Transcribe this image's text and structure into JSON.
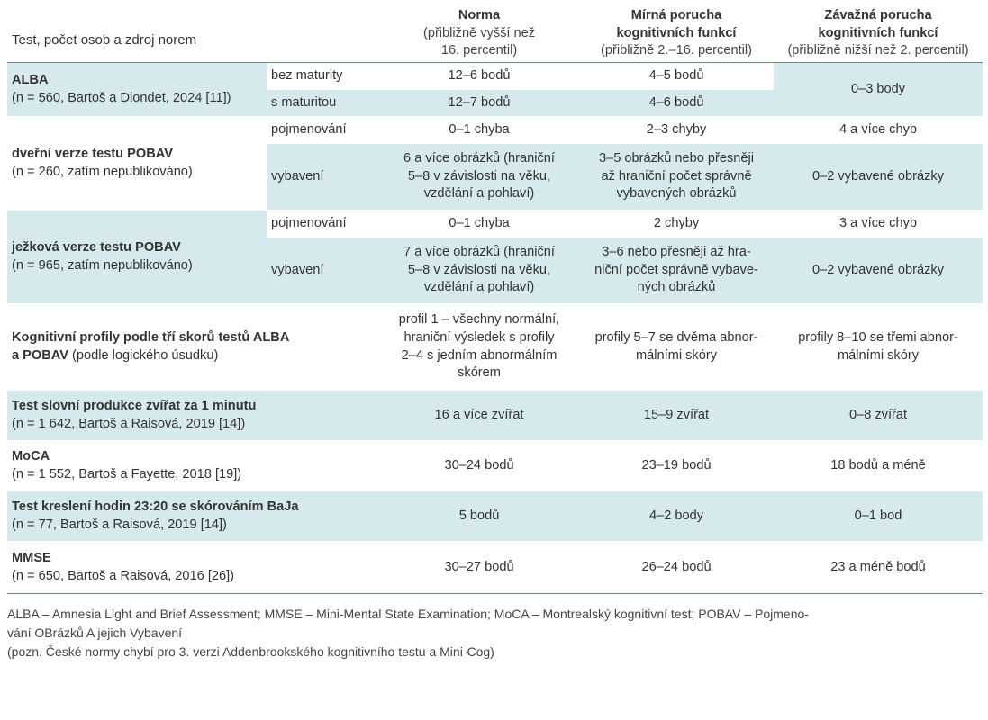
{
  "header": {
    "test_col": "Test, počet osob a zdroj norem",
    "cols": [
      {
        "title": "Norma",
        "sub": [
          "(přibližně vyšší než",
          "16. percentil)"
        ]
      },
      {
        "title": "Mírná porucha",
        "title2": "kognitivních funkcí",
        "sub": [
          "(přibližně 2.–16. percentil)"
        ]
      },
      {
        "title": "Závažná porucha",
        "title2": "kognitivních funkcí",
        "sub": [
          "(přibližně nižší než 2. percentil)"
        ]
      }
    ]
  },
  "rows": {
    "alba": {
      "name": "ALBA",
      "source": "(n = 560, Bartoš a Diondet, 2024 [11])",
      "sub1": "bez maturity",
      "sub1_norm": "12–6 bodů",
      "sub1_mild": "4–5 bodů",
      "sub2": "s maturitou",
      "sub2_norm": "12–7 bodů",
      "sub2_mild": "4–6 bodů",
      "severe": "0–3 body"
    },
    "dvere": {
      "name": "dveřní verze testu POBAV",
      "source": "(n = 260, zatím nepublikováno)",
      "sub1": "pojmenování",
      "sub1_norm": "0–1 chyba",
      "sub1_mild": "2–3 chyby",
      "sub1_severe": "4 a více chyb",
      "sub2": "vybavení",
      "sub2_norm": [
        "6 a více obrázků (hraniční",
        "5–8 v závislosti na věku,",
        "vzdělání a pohlaví)"
      ],
      "sub2_mild": [
        "3–5 obrázků nebo přesněji",
        "až hraniční počet správně",
        "vybavených obrázků"
      ],
      "sub2_severe": "0–2 vybavené obrázky"
    },
    "jezek": {
      "name": "ježková verze testu POBAV",
      "source": "(n = 965, zatím nepublikováno)",
      "sub1": "pojmenování",
      "sub1_norm": "0–1 chyba",
      "sub1_mild": "2 chyby",
      "sub1_severe": "3 a více chyb",
      "sub2": "vybavení",
      "sub2_norm": [
        "7 a více obrázků (hraniční",
        "5–8 v závislosti na věku,",
        "vzdělání a pohlaví)"
      ],
      "sub2_mild": [
        "3–6 nebo přesněji až hra-",
        "niční počet správně vybave-",
        "ných obrázků"
      ],
      "sub2_severe": "0–2 vybavené obrázky"
    },
    "profily": {
      "name_line1": "Kognitivní profily podle tří skorů testů ALBA",
      "name_line2_bold": "a POBAV",
      "name_line2_rest": " (podle logického úsudku)",
      "norm": [
        "profil 1 – všechny normální,",
        "hraniční výsledek s profily",
        "2–4 s jedním abnormálním",
        "skórem"
      ],
      "mild": [
        "profily 5–7 se dvěma abnor-",
        "málními skóry"
      ],
      "severe": [
        "profily 8–10 se třemi abnor-",
        "málními skóry"
      ]
    },
    "zvirata": {
      "name": "Test slovní produkce zvířat za 1 minutu",
      "source": "(n = 1 642, Bartoš a Raisová, 2019 [14])",
      "norm": "16 a více zvířat",
      "mild": "15–9 zvířat",
      "severe": "0–8 zvířat"
    },
    "moca": {
      "name": "MoCA",
      "source": "(n = 1 552, Bartoš a Fayette, 2018 [19])",
      "norm": "30–24 bodů",
      "mild": "23–19 bodů",
      "severe": "18 bodů a méně"
    },
    "hodiny": {
      "name": "Test kreslení hodin 23:20 se skórováním BaJa",
      "source": "(n = 77, Bartoš a Raisová, 2019 [14])",
      "norm": "5 bodů",
      "mild": "4–2 body",
      "severe": "0–1 bod"
    },
    "mmse": {
      "name": "MMSE",
      "source": "(n = 650, Bartoš a Raisová, 2016 [26])",
      "norm": "30–27 bodů",
      "mild": "26–24 bodů",
      "severe": "23 a méně bodů"
    }
  },
  "footnotes": {
    "abbrev_line1": "ALBA – Amnesia Light and Brief Assessment; MMSE – Mini-Mental State Examination; MoCA – Montrealský kognitivní test; POBAV – Pojmeno-",
    "abbrev_line2": "vání OBrázků A jejich Vybavení",
    "note": "(pozn. České normy chybí pro 3. verzi Addenbrookského kognitivního testu a Mini-Cog)"
  }
}
